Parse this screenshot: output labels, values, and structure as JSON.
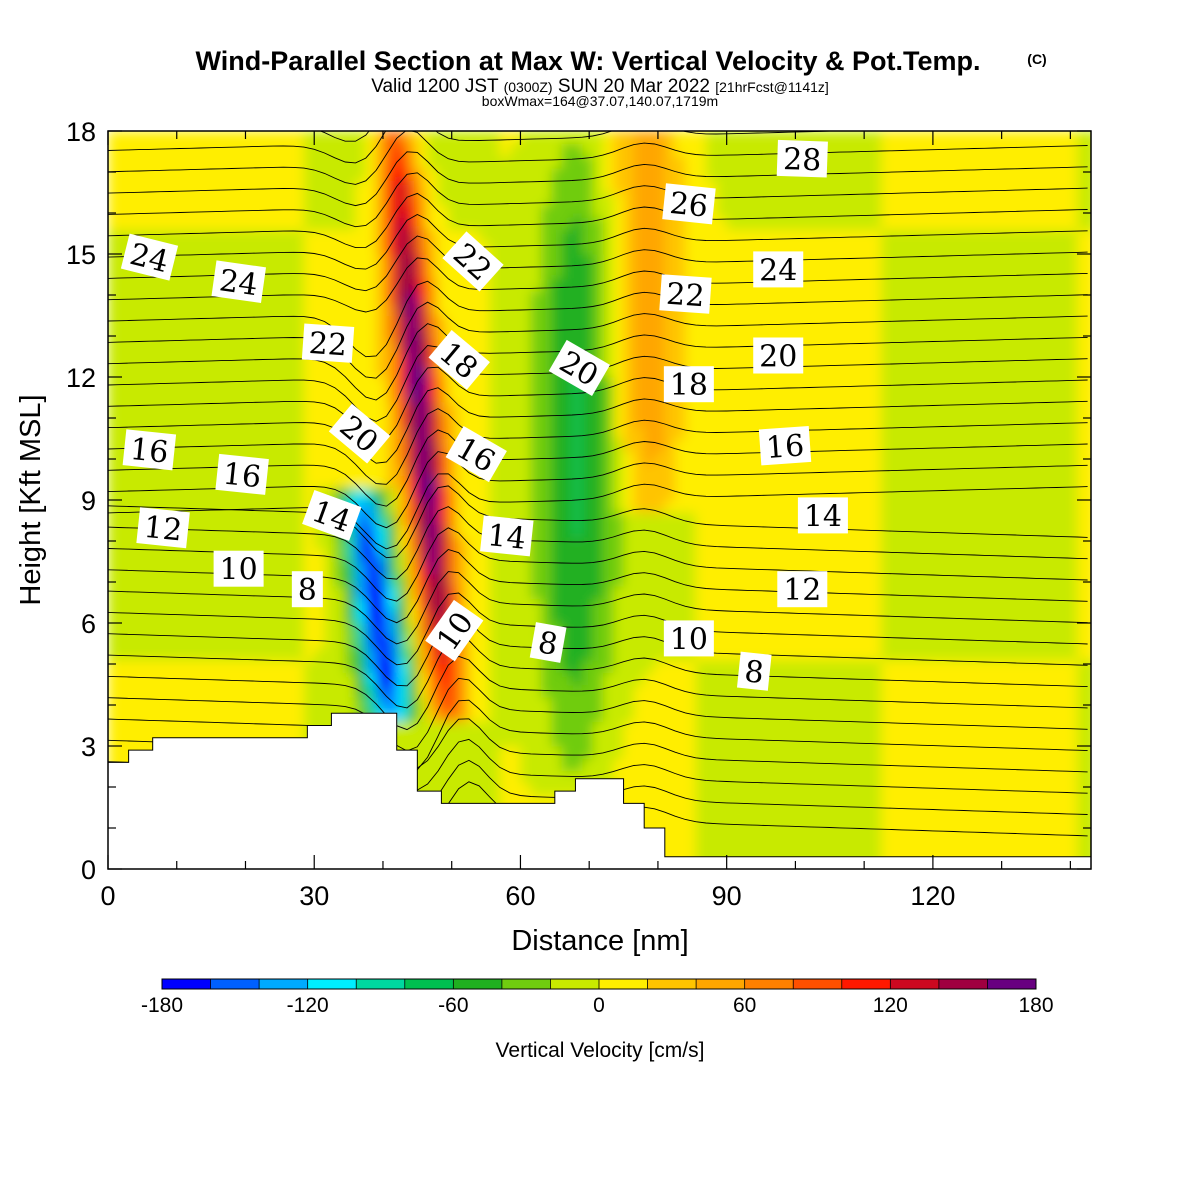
{
  "title": "Wind-Parallel Section at Max W: Vertical Velocity & Pot.Temp.",
  "title_mark": "(C)",
  "subtitle": {
    "valid": "Valid 1200 JST",
    "utc": "(0300Z)",
    "date": "SUN 20 Mar 2022",
    "fcst": "[21hrFcst@1141z]"
  },
  "box_info": "boxWmax=164@37.07,140.07,1719m",
  "chart_data": {
    "type": "heatmap",
    "xlabel": "Distance [nm]",
    "ylabel": "Height [Kft MSL]",
    "xlim": [
      0,
      143
    ],
    "ylim": [
      0,
      18
    ],
    "x_ticks": [
      0,
      30,
      60,
      90,
      120
    ],
    "y_ticks": [
      0,
      3,
      6,
      9,
      12,
      15,
      18
    ],
    "colorbar": {
      "title": "Vertical Velocity [cm/s]",
      "levels": [
        -180,
        -160,
        -140,
        -120,
        -100,
        -80,
        -60,
        -40,
        -20,
        0,
        20,
        40,
        60,
        80,
        100,
        120,
        140,
        160,
        180
      ],
      "tick_labels": [
        "-180",
        "-120",
        "-60",
        "0",
        "60",
        "120",
        "180"
      ],
      "colors": [
        "#0000ff",
        "#0060ff",
        "#00aaff",
        "#00eeff",
        "#00d8a0",
        "#00c050",
        "#20b020",
        "#70cc10",
        "#c8ea00",
        "#ffee00",
        "#ffc400",
        "#ffa600",
        "#ff8000",
        "#ff5000",
        "#ff1800",
        "#cc0820",
        "#a00040",
        "#680080"
      ]
    },
    "vertical_velocity_features": [
      {
        "x_range": [
          44,
          47
        ],
        "z_range": [
          4,
          18
        ],
        "w_max": 164,
        "sign": "updraft"
      },
      {
        "x_range": [
          37,
          41
        ],
        "z_range": [
          4,
          9
        ],
        "w_min": -180,
        "sign": "downdraft"
      },
      {
        "x_range": [
          75,
          82
        ],
        "z_range": [
          9,
          18
        ],
        "w_max": 60,
        "sign": "updraft"
      },
      {
        "x_range": [
          64,
          72
        ],
        "z_range": [
          2,
          18
        ],
        "w_min": -50,
        "sign": "downdraft"
      }
    ],
    "terrain": [
      {
        "x": 0,
        "z": 2.6
      },
      {
        "x": 3,
        "z": 2.9
      },
      {
        "x": 6.5,
        "z": 3.2
      },
      {
        "x": 29,
        "z": 3.5
      },
      {
        "x": 32.5,
        "z": 3.8
      },
      {
        "x": 42,
        "z": 2.9
      },
      {
        "x": 45,
        "z": 1.9
      },
      {
        "x": 48.5,
        "z": 1.6
      },
      {
        "x": 65,
        "z": 1.9
      },
      {
        "x": 68,
        "z": 2.2
      },
      {
        "x": 75,
        "z": 1.6
      },
      {
        "x": 78,
        "z": 1.0
      },
      {
        "x": 81,
        "z": 0.3
      },
      {
        "x": 143,
        "z": 0.3
      }
    ],
    "theta_contour_labels": [
      {
        "x": 6,
        "z": 14.9,
        "value": "24",
        "angle": 14
      },
      {
        "x": 19,
        "z": 14.3,
        "value": "24",
        "angle": 8
      },
      {
        "x": 32,
        "z": 12.8,
        "value": "22",
        "angle": 4
      },
      {
        "x": 36.5,
        "z": 10.6,
        "value": "20",
        "angle": 40
      },
      {
        "x": 53,
        "z": 14.8,
        "value": "22",
        "angle": 42
      },
      {
        "x": 51,
        "z": 12.4,
        "value": "18",
        "angle": 40
      },
      {
        "x": 68.5,
        "z": 12.2,
        "value": "20",
        "angle": 30
      },
      {
        "x": 84.5,
        "z": 16.2,
        "value": "26",
        "angle": 6
      },
      {
        "x": 84,
        "z": 14.0,
        "value": "22",
        "angle": 4
      },
      {
        "x": 101,
        "z": 17.3,
        "value": "28",
        "angle": 2
      },
      {
        "x": 97.5,
        "z": 14.6,
        "value": "24",
        "angle": 0
      },
      {
        "x": 97.5,
        "z": 12.5,
        "value": "20",
        "angle": 0
      },
      {
        "x": 84.5,
        "z": 11.8,
        "value": "18",
        "angle": 0
      },
      {
        "x": 6,
        "z": 10.2,
        "value": "16",
        "angle": 6
      },
      {
        "x": 19.5,
        "z": 9.6,
        "value": "16",
        "angle": 6
      },
      {
        "x": 53.5,
        "z": 10.1,
        "value": "16",
        "angle": 30
      },
      {
        "x": 98.5,
        "z": 10.3,
        "value": "16",
        "angle": -4
      },
      {
        "x": 8,
        "z": 8.3,
        "value": "12",
        "angle": 6
      },
      {
        "x": 32.5,
        "z": 8.6,
        "value": "14",
        "angle": 20
      },
      {
        "x": 58,
        "z": 8.1,
        "value": "14",
        "angle": 6
      },
      {
        "x": 104,
        "z": 8.6,
        "value": "14",
        "angle": 0
      },
      {
        "x": 19,
        "z": 7.3,
        "value": "10",
        "angle": 0
      },
      {
        "x": 29,
        "z": 6.8,
        "value": "8",
        "angle": 0
      },
      {
        "x": 50.5,
        "z": 5.8,
        "value": "10",
        "angle": -55
      },
      {
        "x": 64,
        "z": 5.5,
        "value": "8",
        "angle": 10
      },
      {
        "x": 84.5,
        "z": 5.6,
        "value": "10",
        "angle": 0
      },
      {
        "x": 101,
        "z": 6.8,
        "value": "12",
        "angle": 0
      },
      {
        "x": 94,
        "z": 4.8,
        "value": "8",
        "angle": 6
      }
    ]
  }
}
